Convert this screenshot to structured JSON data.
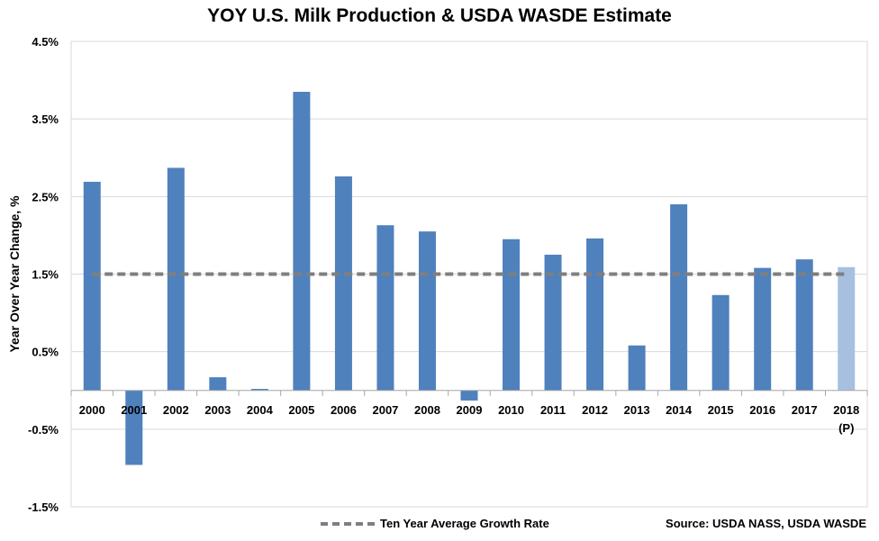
{
  "chart_data": {
    "type": "bar",
    "title": "YOY U.S. Milk Production & USDA WASDE Estimate",
    "ylabel": "Year Over Year Change, %",
    "xlabel": "",
    "ylim": [
      -1.5,
      4.5
    ],
    "yticks": [
      "4.5%",
      "3.5%",
      "2.5%",
      "1.5%",
      "0.5%",
      "-0.5%",
      "-1.5%"
    ],
    "ytick_values": [
      4.5,
      3.5,
      2.5,
      1.5,
      0.5,
      -0.5,
      -1.5
    ],
    "grid": true,
    "categories": [
      "2000",
      "2001",
      "2002",
      "2003",
      "2004",
      "2005",
      "2006",
      "2007",
      "2008",
      "2009",
      "2010",
      "2011",
      "2012",
      "2013",
      "2014",
      "2015",
      "2016",
      "2017",
      "2018"
    ],
    "projection_label": "(P)",
    "values": [
      2.69,
      -0.96,
      2.87,
      0.17,
      0.02,
      3.85,
      2.76,
      2.13,
      2.05,
      -0.13,
      1.95,
      1.75,
      1.96,
      0.58,
      2.4,
      1.23,
      1.58,
      1.69,
      1.59
    ],
    "bar_colors": {
      "actual": "#4f81bd",
      "projected": "#a7c0e0"
    },
    "average_line": {
      "name": "Ten Year Average Growth Rate",
      "value": 1.5,
      "color": "#7f7f7f"
    },
    "legend_position": "bottom",
    "source": "Source: USDA NASS, USDA WASDE"
  }
}
